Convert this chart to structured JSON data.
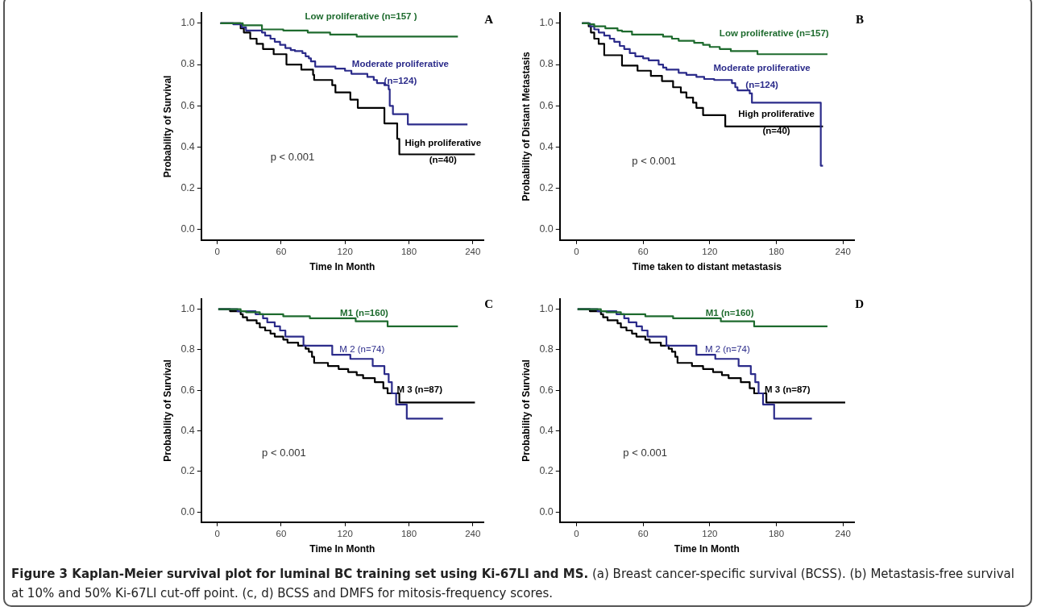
{
  "chart_data": [
    {
      "type": "step",
      "title": "A",
      "xlabel": "Time In Month",
      "ylabel": "Probability of Survival",
      "xlim": [
        -15,
        250
      ],
      "ylim": [
        -0.05,
        1.05
      ],
      "xticks": [
        0,
        60,
        120,
        180,
        240
      ],
      "yticks": [
        {
          "value": 0,
          "label": "0.0"
        },
        {
          "value": 0.2,
          "label": "0.2"
        },
        {
          "value": 0.4,
          "label": "0.4"
        },
        {
          "value": 0.6,
          "label": "0.6"
        },
        {
          "value": 0.8,
          "label": "0.8"
        },
        {
          "value": 1,
          "label": "1.0"
        }
      ],
      "grid": false,
      "legend": false,
      "annotations": [
        "p < 0.001"
      ],
      "series": [
        {
          "name": "Low proliferative (n=157 )",
          "color": "#1e6b2e",
          "x": [
            3,
            24,
            42,
            62,
            85,
            106,
            131,
            226
          ],
          "values": [
            1,
            0.99,
            0.97,
            0.965,
            0.955,
            0.945,
            0.935,
            0.935
          ]
        },
        {
          "name": "Moderate proliferative (n=124)",
          "color": "#2b2b8a",
          "x": [
            3,
            15,
            23,
            27,
            42,
            45,
            50,
            54,
            59,
            64,
            69,
            73,
            80,
            83,
            86,
            88,
            92,
            111,
            120,
            126,
            141,
            147,
            150,
            157,
            161,
            162,
            165,
            179,
            235
          ],
          "values": [
            1,
            0.995,
            0.98,
            0.965,
            0.955,
            0.94,
            0.925,
            0.91,
            0.895,
            0.88,
            0.87,
            0.865,
            0.855,
            0.84,
            0.83,
            0.815,
            0.79,
            0.78,
            0.77,
            0.755,
            0.74,
            0.725,
            0.71,
            0.7,
            0.68,
            0.6,
            0.56,
            0.51,
            0.51
          ]
        },
        {
          "name": "High proliferative (n=40)",
          "color": "#000000",
          "x": [
            3,
            22,
            25,
            31,
            37,
            43,
            53,
            65,
            79,
            90,
            91,
            108,
            111,
            125,
            132,
            157,
            169,
            171,
            242
          ],
          "values": [
            1,
            0.975,
            0.955,
            0.925,
            0.9,
            0.875,
            0.85,
            0.8,
            0.775,
            0.75,
            0.725,
            0.7,
            0.665,
            0.63,
            0.59,
            0.515,
            0.44,
            0.365,
            0.365
          ]
        }
      ]
    },
    {
      "type": "step",
      "title": "B",
      "xlabel": "Time taken to distant metastasis",
      "ylabel": "Probability of Distant Metastasis",
      "xlim": [
        -15,
        250
      ],
      "ylim": [
        -0.05,
        1.05
      ],
      "xticks": [
        0,
        60,
        120,
        180,
        240
      ],
      "yticks": [
        {
          "value": 0,
          "label": "0.0"
        },
        {
          "value": 0.2,
          "label": "0.2"
        },
        {
          "value": 0.4,
          "label": "0.4"
        },
        {
          "value": 0.6,
          "label": "0.6"
        },
        {
          "value": 0.8,
          "label": "0.8"
        },
        {
          "value": 1,
          "label": "1.0"
        }
      ],
      "grid": false,
      "legend": false,
      "annotations": [
        "p < 0.001"
      ],
      "series": [
        {
          "name": "Low proliferative (n=157)",
          "color": "#1e6b2e",
          "x": [
            5,
            11,
            16,
            26,
            37,
            41,
            50,
            78,
            86,
            92,
            106,
            114,
            120,
            129,
            139,
            163,
            226
          ],
          "values": [
            1,
            0.995,
            0.985,
            0.975,
            0.965,
            0.96,
            0.945,
            0.935,
            0.925,
            0.915,
            0.905,
            0.895,
            0.885,
            0.875,
            0.865,
            0.85,
            0.85
          ]
        },
        {
          "name": "Moderate proliferative (n=124)",
          "color": "#2b2b8a",
          "x": [
            5,
            12,
            16,
            20,
            25,
            30,
            34,
            39,
            43,
            48,
            53,
            60,
            65,
            74,
            78,
            81,
            92,
            99,
            108,
            115,
            124,
            140,
            143,
            145,
            156,
            158,
            220,
            222
          ],
          "values": [
            1,
            0.985,
            0.97,
            0.955,
            0.94,
            0.925,
            0.91,
            0.89,
            0.875,
            0.855,
            0.84,
            0.83,
            0.82,
            0.8,
            0.785,
            0.775,
            0.76,
            0.75,
            0.74,
            0.73,
            0.725,
            0.71,
            0.69,
            0.675,
            0.66,
            0.615,
            0.31,
            0.31
          ]
        },
        {
          "name": "High proliferative (n=40)",
          "color": "#000000",
          "x": [
            5,
            11,
            13,
            16,
            20,
            25,
            41,
            55,
            67,
            77,
            87,
            94,
            99,
            105,
            108,
            114,
            134,
            222
          ],
          "values": [
            1,
            0.985,
            0.955,
            0.925,
            0.9,
            0.845,
            0.795,
            0.77,
            0.745,
            0.72,
            0.69,
            0.665,
            0.64,
            0.615,
            0.59,
            0.555,
            0.5,
            0.5
          ]
        }
      ]
    },
    {
      "type": "step",
      "title": "C",
      "xlabel": "Time In Month",
      "ylabel": "Probability of Survival",
      "xlim": [
        -15,
        250
      ],
      "ylim": [
        -0.05,
        1.05
      ],
      "xticks": [
        0,
        60,
        120,
        180,
        240
      ],
      "yticks": [
        {
          "value": 0,
          "label": "0.0"
        },
        {
          "value": 0.2,
          "label": "0.2"
        },
        {
          "value": 0.4,
          "label": "0.4"
        },
        {
          "value": 0.6,
          "label": "0.6"
        },
        {
          "value": 0.8,
          "label": "0.8"
        },
        {
          "value": 1,
          "label": "1.0"
        }
      ],
      "grid": false,
      "legend": false,
      "annotations": [
        "p < 0.001"
      ],
      "series": [
        {
          "name": "M1 (n=160)",
          "color": "#1e6b2e",
          "x": [
            1,
            22,
            27,
            40,
            62,
            87,
            130,
            160,
            226
          ],
          "values": [
            1,
            0.99,
            0.985,
            0.975,
            0.965,
            0.955,
            0.94,
            0.915,
            0.915
          ]
        },
        {
          "name": "M 2 (n=74)",
          "color": "#2b2b8a",
          "x": [
            1,
            19,
            36,
            43,
            47,
            54,
            59,
            64,
            81,
            108,
            125,
            146,
            157,
            161,
            164,
            168,
            178,
            212
          ],
          "values": [
            1,
            0.99,
            0.975,
            0.955,
            0.935,
            0.915,
            0.895,
            0.865,
            0.82,
            0.775,
            0.755,
            0.72,
            0.68,
            0.64,
            0.585,
            0.53,
            0.46,
            0.46
          ]
        },
        {
          "name": "M 3 (n=87)",
          "color": "#000000",
          "x": [
            1,
            12,
            22,
            24,
            28,
            37,
            40,
            45,
            50,
            54,
            62,
            66,
            76,
            83,
            86,
            89,
            91,
            104,
            114,
            123,
            131,
            137,
            148,
            156,
            160,
            171,
            242
          ],
          "values": [
            1,
            0.99,
            0.975,
            0.96,
            0.945,
            0.93,
            0.91,
            0.895,
            0.88,
            0.865,
            0.85,
            0.835,
            0.82,
            0.805,
            0.79,
            0.765,
            0.735,
            0.72,
            0.705,
            0.69,
            0.675,
            0.66,
            0.64,
            0.61,
            0.585,
            0.54,
            0.54
          ]
        }
      ]
    },
    {
      "type": "step",
      "title": "D",
      "xlabel": "Time In Month",
      "ylabel": "Probability of Survival",
      "xlim": [
        -15,
        250
      ],
      "ylim": [
        -0.05,
        1.05
      ],
      "xticks": [
        0,
        60,
        120,
        180,
        240
      ],
      "yticks": [
        {
          "value": 0,
          "label": "0.0"
        },
        {
          "value": 0.2,
          "label": "0.2"
        },
        {
          "value": 0.4,
          "label": "0.4"
        },
        {
          "value": 0.6,
          "label": "0.6"
        },
        {
          "value": 0.8,
          "label": "0.8"
        },
        {
          "value": 1,
          "label": "1.0"
        }
      ],
      "grid": false,
      "legend": false,
      "annotations": [
        "p < 0.001"
      ],
      "series": [
        {
          "name": "M1 (n=160)",
          "color": "#1e6b2e",
          "x": [
            1,
            22,
            27,
            40,
            62,
            87,
            130,
            160,
            226
          ],
          "values": [
            1,
            0.99,
            0.985,
            0.975,
            0.965,
            0.955,
            0.94,
            0.915,
            0.915
          ]
        },
        {
          "name": "M 2 (n=74)",
          "color": "#2b2b8a",
          "x": [
            1,
            19,
            36,
            43,
            47,
            54,
            59,
            64,
            81,
            108,
            125,
            146,
            157,
            161,
            164,
            168,
            178,
            212
          ],
          "values": [
            1,
            0.99,
            0.975,
            0.955,
            0.935,
            0.915,
            0.895,
            0.865,
            0.82,
            0.775,
            0.755,
            0.72,
            0.68,
            0.64,
            0.585,
            0.53,
            0.46,
            0.46
          ]
        },
        {
          "name": "M 3 (n=87)",
          "color": "#000000",
          "x": [
            1,
            12,
            22,
            24,
            28,
            37,
            40,
            45,
            50,
            54,
            62,
            66,
            76,
            83,
            86,
            89,
            91,
            104,
            114,
            123,
            131,
            137,
            148,
            156,
            160,
            171,
            242
          ],
          "values": [
            1,
            0.99,
            0.975,
            0.96,
            0.945,
            0.93,
            0.91,
            0.895,
            0.88,
            0.865,
            0.85,
            0.835,
            0.82,
            0.805,
            0.79,
            0.765,
            0.735,
            0.72,
            0.705,
            0.69,
            0.675,
            0.66,
            0.64,
            0.61,
            0.585,
            0.54,
            0.54
          ]
        }
      ]
    },
    {
      "type": "other",
      "title": "Figure 3 Kaplan-Meier survival plot for luminal BC training set using Ki-67LI and MS.",
      "annotations": [
        "(a) Breast cancer-specific survival (BCSS).",
        "(b) Metastasis-free survival at 10% and 50% Ki-67LI cut-off point.",
        "(c, d) BCSS and DMFS for mitosis-frequency scores."
      ]
    }
  ]
}
